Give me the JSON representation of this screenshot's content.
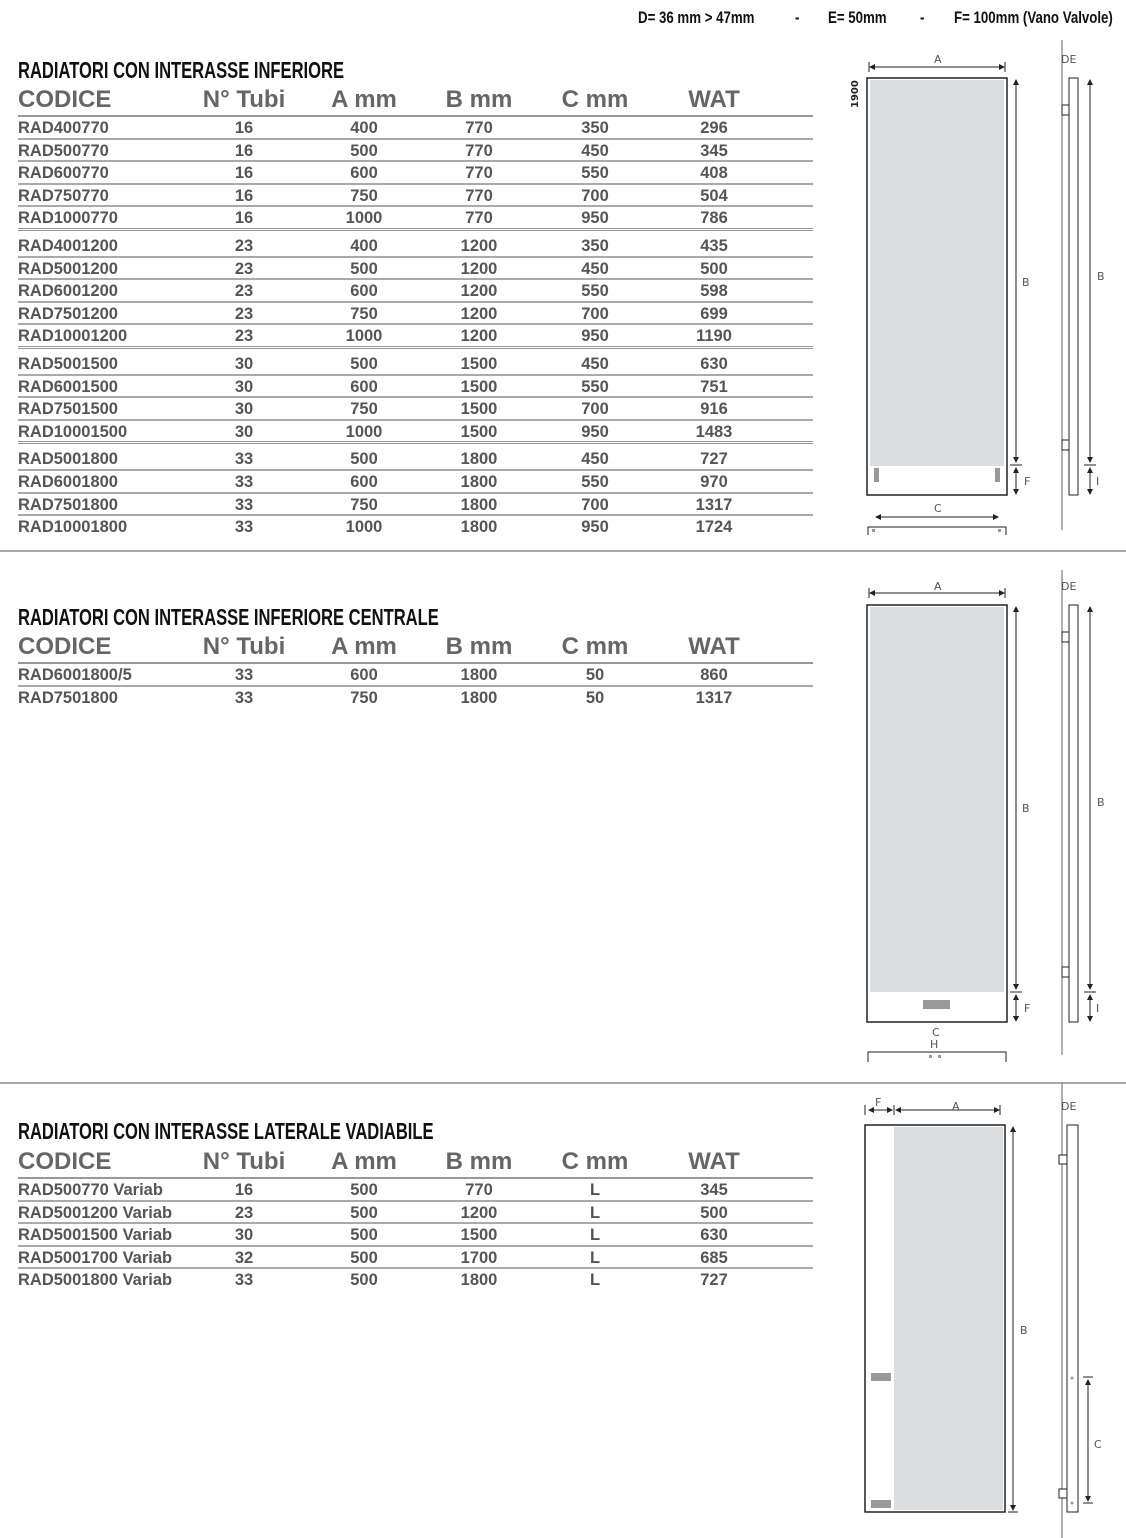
{
  "specs": {
    "d": "D= 36 mm > 47mm",
    "sep1": "-",
    "e": "E= 50mm",
    "sep2": "-",
    "f": "F= 100mm (Vano Valvole)"
  },
  "columns": [
    "CODICE",
    "N° Tubi",
    "A mm",
    "B mm",
    "C mm",
    "WAT"
  ],
  "sections": [
    {
      "title": "RADIATORI CON INTERASSE INFERIORE",
      "groups": [
        [
          [
            "RAD400770",
            "16",
            "400",
            "770",
            "350",
            "296"
          ],
          [
            "RAD500770",
            "16",
            "500",
            "770",
            "450",
            "345"
          ],
          [
            "RAD600770",
            "16",
            "600",
            "770",
            "550",
            "408"
          ],
          [
            "RAD750770",
            "16",
            "750",
            "770",
            "700",
            "504"
          ],
          [
            "RAD1000770",
            "16",
            "1000",
            "770",
            "950",
            "786"
          ]
        ],
        [
          [
            "RAD4001200",
            "23",
            "400",
            "1200",
            "350",
            "435"
          ],
          [
            "RAD5001200",
            "23",
            "500",
            "1200",
            "450",
            "500"
          ],
          [
            "RAD6001200",
            "23",
            "600",
            "1200",
            "550",
            "598"
          ],
          [
            "RAD7501200",
            "23",
            "750",
            "1200",
            "700",
            "699"
          ],
          [
            "RAD10001200",
            "23",
            "1000",
            "1200",
            "950",
            "1190"
          ]
        ],
        [
          [
            "RAD5001500",
            "30",
            "500",
            "1500",
            "450",
            "630"
          ],
          [
            "RAD6001500",
            "30",
            "600",
            "1500",
            "550",
            "751"
          ],
          [
            "RAD7501500",
            "30",
            "750",
            "1500",
            "700",
            "916"
          ],
          [
            "RAD10001500",
            "30",
            "1000",
            "1500",
            "950",
            "1483"
          ]
        ],
        [
          [
            "RAD5001800",
            "33",
            "500",
            "1800",
            "450",
            "727"
          ],
          [
            "RAD6001800",
            "33",
            "600",
            "1800",
            "550",
            "970"
          ],
          [
            "RAD7501800",
            "33",
            "750",
            "1800",
            "700",
            "1317"
          ],
          [
            "RAD10001800",
            "33",
            "1000",
            "1800",
            "950",
            "1724"
          ]
        ]
      ]
    },
    {
      "title": "RADIATORI CON INTERASSE INFERIORE CENTRALE",
      "groups": [
        [
          [
            "RAD6001800/5",
            "33",
            "600",
            "1800",
            "50",
            "860"
          ],
          [
            "RAD7501800",
            "33",
            "750",
            "1800",
            "50",
            "1317"
          ]
        ]
      ]
    },
    {
      "title": "RADIATORI CON INTERASSE LATERALE VADIABILE",
      "groups": [
        [
          [
            "RAD500770 Variab",
            "16",
            "500",
            "770",
            "L",
            "345"
          ],
          [
            "RAD5001200 Variab",
            "23",
            "500",
            "1200",
            "L",
            "500"
          ],
          [
            "RAD5001500 Variab",
            "30",
            "500",
            "1500",
            "L",
            "630"
          ],
          [
            "RAD5001700 Variab",
            "32",
            "500",
            "1700",
            "L",
            "685"
          ],
          [
            "RAD5001800 Variab",
            "33",
            "500",
            "1800",
            "L",
            "727"
          ]
        ]
      ]
    }
  ],
  "diagram": {
    "height_label": "1900",
    "a": "A",
    "b": "B",
    "c": "C",
    "de": "DE",
    "f": "F",
    "i": "I",
    "h": "H",
    "panel_fill": "#dcdddf",
    "valve_fill": "#999999"
  }
}
